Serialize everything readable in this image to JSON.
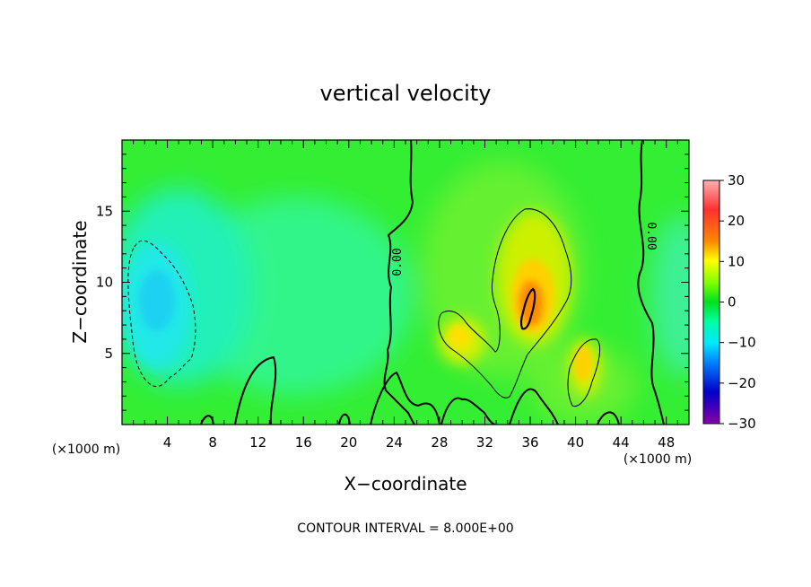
{
  "chart_data": {
    "type": "heatmap",
    "title": "vertical velocity",
    "xlabel": "X−coordinate",
    "ylabel": "Z−coordinate",
    "x_unit_left": "(×1000 m)",
    "x_unit_right": "(×1000 m)",
    "footer": "CONTOUR INTERVAL = 8.000E+00",
    "xlim": [
      0,
      50
    ],
    "ylim": [
      0,
      20
    ],
    "x_ticks": [
      4,
      8,
      12,
      16,
      20,
      24,
      28,
      32,
      36,
      40,
      44,
      48
    ],
    "x_tick_labels": [
      "4",
      "8",
      "12",
      "16",
      "20",
      "24",
      "28",
      "32",
      "36",
      "40",
      "44",
      "48"
    ],
    "y_ticks": [
      5,
      10,
      15
    ],
    "y_tick_labels": [
      "5",
      "10",
      "15"
    ],
    "colorbar": {
      "range": [
        -30,
        30
      ],
      "ticks": [
        30,
        20,
        10,
        0,
        -10,
        -20,
        -30
      ],
      "tick_labels": [
        "30",
        "20",
        "10",
        "0",
        "−10",
        "−20",
        "−30"
      ]
    },
    "contour_labels": [
      "0.00",
      "0.00"
    ],
    "features": [
      {
        "type": "downdraft",
        "x": 3.0,
        "y": 8.5,
        "value": -8
      },
      {
        "type": "updraft",
        "x": 35.5,
        "y": 8.5,
        "value": 14
      },
      {
        "type": "updraft",
        "x": 40.5,
        "y": 3.5,
        "value": 9
      },
      {
        "type": "updraft",
        "x": 30.0,
        "y": 6.0,
        "value": 8
      }
    ]
  }
}
